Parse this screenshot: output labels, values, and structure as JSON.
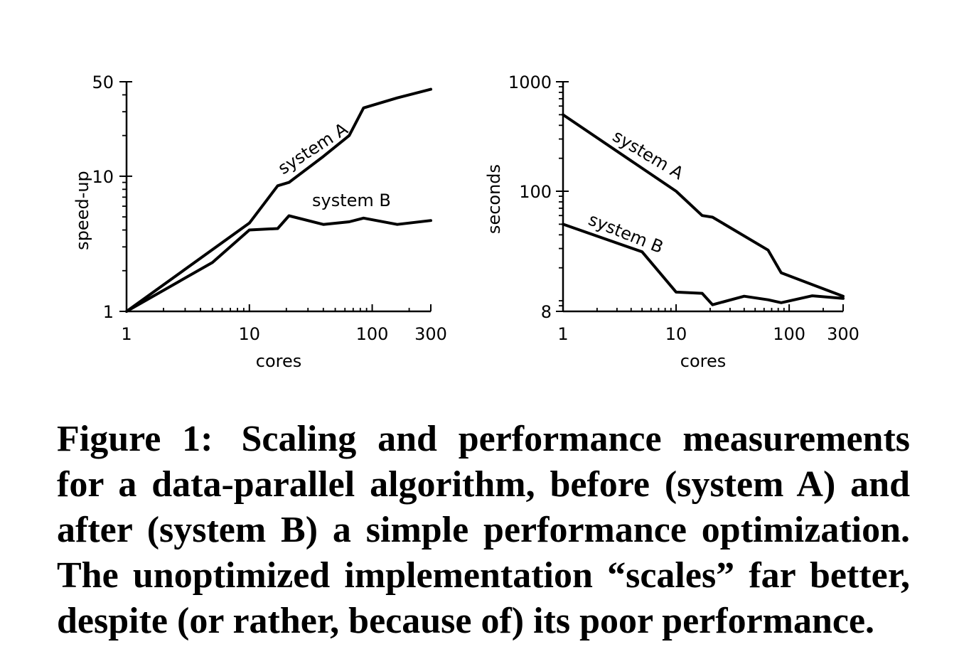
{
  "chart_data": [
    {
      "type": "line",
      "xlabel": "cores",
      "ylabel": "speed-up",
      "xscale": "log",
      "yscale": "log",
      "xlim": [
        1,
        300
      ],
      "ylim": [
        1,
        50
      ],
      "xticks": [
        {
          "value": 1,
          "label": "1"
        },
        {
          "value": 10,
          "label": "10"
        },
        {
          "value": 100,
          "label": "100"
        },
        {
          "value": 300,
          "label": "300"
        }
      ],
      "yticks": [
        {
          "value": 1,
          "label": "1"
        },
        {
          "value": 10,
          "label": "10"
        },
        {
          "value": 50,
          "label": "50"
        }
      ],
      "series": [
        {
          "name": "system A",
          "x": [
            1,
            10,
            17,
            21,
            40,
            65,
            85,
            160,
            300
          ],
          "y": [
            1,
            4.5,
            8.5,
            9,
            14,
            20,
            32,
            38,
            44
          ]
        },
        {
          "name": "system B",
          "x": [
            1,
            5,
            10,
            17,
            21,
            40,
            65,
            85,
            160,
            300
          ],
          "y": [
            1,
            2.3,
            4,
            4.1,
            5.1,
            4.4,
            4.6,
            4.9,
            4.4,
            4.7
          ]
        }
      ]
    },
    {
      "type": "line",
      "xlabel": "cores",
      "ylabel": "seconds",
      "xscale": "log",
      "yscale": "log",
      "xlim": [
        1,
        300
      ],
      "ylim": [
        8,
        1000
      ],
      "xticks": [
        {
          "value": 1,
          "label": "1"
        },
        {
          "value": 10,
          "label": "10"
        },
        {
          "value": 100,
          "label": "100"
        },
        {
          "value": 300,
          "label": "300"
        }
      ],
      "yticks": [
        {
          "value": 8,
          "label": "8"
        },
        {
          "value": 100,
          "label": "100"
        },
        {
          "value": 1000,
          "label": "1000"
        }
      ],
      "series": [
        {
          "name": "system A",
          "x": [
            1,
            10,
            17,
            21,
            65,
            85,
            300
          ],
          "y": [
            500,
            100,
            60,
            58,
            29,
            18,
            11
          ]
        },
        {
          "name": "system B",
          "x": [
            1,
            5,
            10,
            17,
            21,
            40,
            65,
            85,
            160,
            300
          ],
          "y": [
            50,
            28,
            12,
            11.7,
            9.2,
            11,
            10.2,
            9.6,
            11.1,
            10.5
          ]
        }
      ]
    }
  ],
  "caption": {
    "label": "Figure 1:",
    "text": "Scaling and performance measurements for a data-parallel algorithm, before (system A) and after (system B) a simple performance optimization. The unoptimized implementation “scales” far better, despite (or rather, because of) its poor performance."
  }
}
